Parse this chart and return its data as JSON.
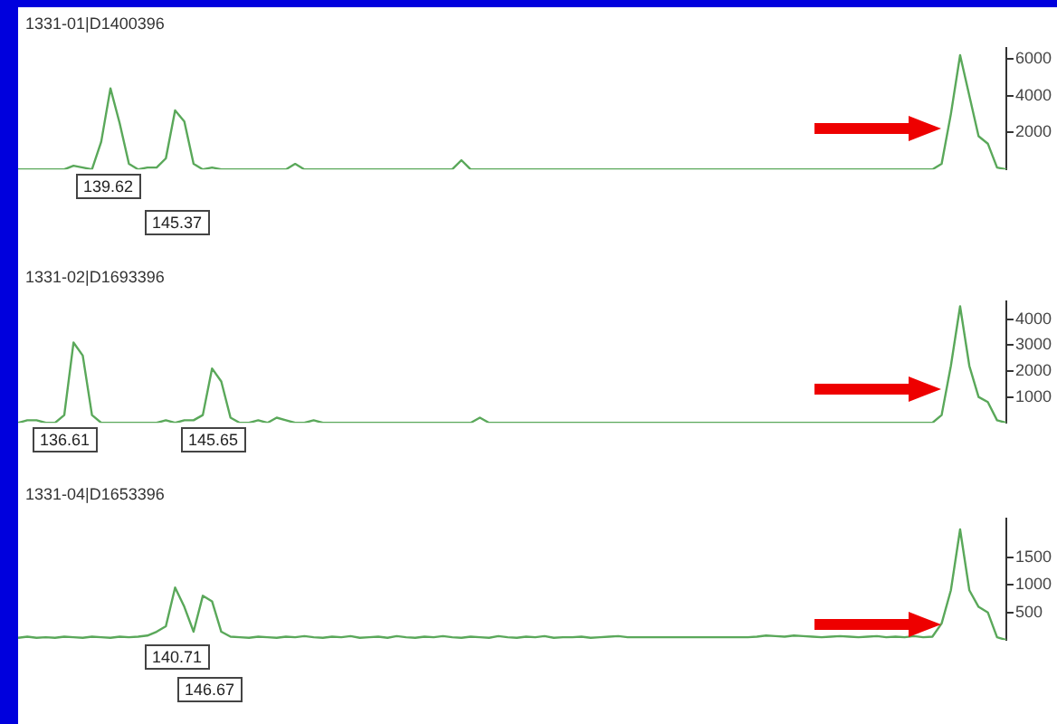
{
  "chart_data": [
    {
      "type": "line",
      "title": "1331-01|D1400396",
      "categories": [
        null,
        null,
        null,
        null,
        null,
        null,
        null,
        null,
        null,
        null,
        null,
        null,
        null,
        null,
        null,
        null,
        null,
        null,
        null,
        null,
        null,
        null,
        null,
        null,
        null,
        null,
        null,
        null,
        null,
        null,
        null,
        null,
        null,
        null,
        null,
        null,
        null,
        null,
        null,
        null,
        null,
        null,
        null,
        null,
        null,
        null,
        null,
        null,
        null,
        null,
        null,
        null,
        null,
        null,
        null,
        null,
        null,
        null,
        null,
        null,
        null,
        null,
        null,
        null,
        null,
        null,
        null,
        null,
        null,
        null,
        null,
        null,
        null,
        null,
        null,
        null,
        null,
        null,
        null,
        null,
        null,
        null,
        null,
        null,
        null,
        null,
        null,
        null,
        null,
        null,
        null,
        null,
        null,
        null,
        null,
        null,
        null,
        null,
        null,
        null,
        null,
        null,
        null,
        null,
        null,
        null,
        null,
        null
      ],
      "series": [
        {
          "color": "#5aa85a",
          "values": [
            0,
            0,
            0,
            0,
            0,
            0,
            200,
            100,
            0,
            1500,
            4400,
            2500,
            300,
            0,
            100,
            100,
            600,
            3200,
            2600,
            300,
            0,
            100,
            0,
            0,
            0,
            0,
            0,
            0,
            0,
            0,
            300,
            0,
            0,
            0,
            0,
            0,
            0,
            0,
            0,
            0,
            0,
            0,
            0,
            0,
            0,
            0,
            0,
            0,
            500,
            0,
            0,
            0,
            0,
            0,
            0,
            0,
            0,
            0,
            0,
            0,
            0,
            0,
            0,
            0,
            0,
            0,
            0,
            0,
            0,
            0,
            0,
            0,
            0,
            0,
            0,
            0,
            0,
            0,
            0,
            0,
            0,
            0,
            0,
            0,
            0,
            0,
            0,
            0,
            0,
            0,
            0,
            0,
            0,
            0,
            0,
            0,
            0,
            0,
            0,
            0,
            300,
            3000,
            6200,
            4000,
            1800,
            1400,
            100,
            0
          ]
        }
      ],
      "ylim": [
        0,
        6600
      ],
      "yticks": [
        2000,
        4000,
        6000
      ],
      "tick_labels": "y",
      "marker": "none",
      "annotations": [
        "139.62",
        "145.37"
      ]
    },
    {
      "type": "line",
      "title": "1331-02|D1693396",
      "categories": [
        null,
        null,
        null,
        null,
        null,
        null,
        null,
        null,
        null,
        null,
        null,
        null,
        null,
        null,
        null,
        null,
        null,
        null,
        null,
        null,
        null,
        null,
        null,
        null,
        null,
        null,
        null,
        null,
        null,
        null,
        null,
        null,
        null,
        null,
        null,
        null,
        null,
        null,
        null,
        null,
        null,
        null,
        null,
        null,
        null,
        null,
        null,
        null,
        null,
        null,
        null,
        null,
        null,
        null,
        null,
        null,
        null,
        null,
        null,
        null,
        null,
        null,
        null,
        null,
        null,
        null,
        null,
        null,
        null,
        null,
        null,
        null,
        null,
        null,
        null,
        null,
        null,
        null,
        null,
        null,
        null,
        null,
        null,
        null,
        null,
        null,
        null,
        null,
        null,
        null,
        null,
        null,
        null,
        null,
        null,
        null,
        null,
        null,
        null,
        null,
        null,
        null,
        null,
        null,
        null,
        null,
        null,
        null
      ],
      "series": [
        {
          "color": "#5aa85a",
          "values": [
            0,
            100,
            100,
            0,
            0,
            300,
            3100,
            2600,
            300,
            0,
            0,
            0,
            0,
            0,
            0,
            0,
            100,
            0,
            100,
            100,
            300,
            2100,
            1600,
            200,
            0,
            0,
            100,
            0,
            200,
            100,
            0,
            0,
            100,
            0,
            0,
            0,
            0,
            0,
            0,
            0,
            0,
            0,
            0,
            0,
            0,
            0,
            0,
            0,
            0,
            0,
            200,
            0,
            0,
            0,
            0,
            0,
            0,
            0,
            0,
            0,
            0,
            0,
            0,
            0,
            0,
            0,
            0,
            0,
            0,
            0,
            0,
            0,
            0,
            0,
            0,
            0,
            0,
            0,
            0,
            0,
            0,
            0,
            0,
            0,
            0,
            0,
            0,
            0,
            0,
            0,
            0,
            0,
            0,
            0,
            0,
            0,
            0,
            0,
            0,
            0,
            300,
            2200,
            4500,
            2200,
            1000,
            800,
            100,
            0
          ]
        }
      ],
      "ylim": [
        0,
        4700
      ],
      "yticks": [
        1000,
        2000,
        3000,
        4000
      ],
      "tick_labels": "y",
      "marker": "none",
      "annotations": [
        "136.61",
        "145.65"
      ]
    },
    {
      "type": "line",
      "title": "1331-04|D1653396",
      "categories": [
        null,
        null,
        null,
        null,
        null,
        null,
        null,
        null,
        null,
        null,
        null,
        null,
        null,
        null,
        null,
        null,
        null,
        null,
        null,
        null,
        null,
        null,
        null,
        null,
        null,
        null,
        null,
        null,
        null,
        null,
        null,
        null,
        null,
        null,
        null,
        null,
        null,
        null,
        null,
        null,
        null,
        null,
        null,
        null,
        null,
        null,
        null,
        null,
        null,
        null,
        null,
        null,
        null,
        null,
        null,
        null,
        null,
        null,
        null,
        null,
        null,
        null,
        null,
        null,
        null,
        null,
        null,
        null,
        null,
        null,
        null,
        null,
        null,
        null,
        null,
        null,
        null,
        null,
        null,
        null,
        null,
        null,
        null,
        null,
        null,
        null,
        null,
        null,
        null,
        null,
        null,
        null,
        null,
        null,
        null,
        null,
        null,
        null,
        null,
        null,
        null,
        null,
        null,
        null,
        null,
        null,
        null,
        null
      ],
      "series": [
        {
          "color": "#5aa85a",
          "values": [
            40,
            60,
            40,
            50,
            40,
            60,
            50,
            40,
            60,
            50,
            40,
            60,
            50,
            60,
            80,
            150,
            250,
            950,
            600,
            150,
            800,
            700,
            150,
            60,
            50,
            40,
            60,
            50,
            40,
            60,
            50,
            70,
            50,
            40,
            60,
            50,
            70,
            40,
            50,
            60,
            40,
            70,
            50,
            40,
            60,
            50,
            70,
            50,
            40,
            60,
            50,
            40,
            70,
            50,
            40,
            60,
            50,
            70,
            40,
            50,
            50,
            60,
            40,
            50,
            60,
            70,
            50,
            50,
            50,
            50,
            50,
            50,
            50,
            50,
            50,
            50,
            50,
            50,
            50,
            50,
            60,
            80,
            70,
            60,
            80,
            70,
            60,
            50,
            60,
            70,
            60,
            50,
            60,
            70,
            50,
            60,
            50,
            70,
            50,
            60,
            300,
            900,
            2000,
            900,
            600,
            500,
            50,
            0
          ]
        }
      ],
      "ylim": [
        0,
        2200
      ],
      "yticks": [
        500,
        1000,
        1500
      ],
      "tick_labels": "y",
      "marker": "none",
      "annotations": [
        "140.71",
        "146.67"
      ]
    }
  ]
}
